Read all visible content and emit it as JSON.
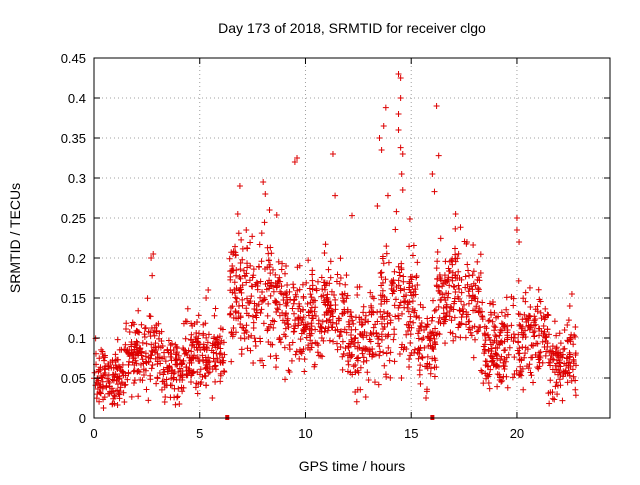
{
  "chart_data": {
    "type": "scatter",
    "title": "Day 173 of 2018, SRMTID for receiver clgo",
    "xlabel": "GPS time / hours",
    "ylabel": "SRMTID / TECUs",
    "xlim": [
      0,
      24.4
    ],
    "ylim": [
      0,
      0.45
    ],
    "x_ticks": [
      0,
      5,
      10,
      15,
      20
    ],
    "x_tick_labels": [
      "0",
      "5",
      "10",
      "15",
      "20"
    ],
    "y_ticks": [
      0,
      0.05,
      0.1,
      0.15,
      0.2,
      0.25,
      0.3,
      0.35,
      0.4,
      0.45
    ],
    "y_tick_labels": [
      "0",
      "0.05",
      "0.1",
      "0.15",
      "0.2",
      "0.25",
      "0.3",
      "0.35",
      "0.4",
      "0.45"
    ],
    "grid": true,
    "marker": "plus",
    "color": "#dd0000",
    "gap_markers_x": [
      6.3,
      16.0
    ],
    "series": [
      {
        "name": "SRMTID",
        "segments": [
          {
            "start": 0.0,
            "end": 1.5,
            "mean": 0.05,
            "spread": 0.035
          },
          {
            "start": 1.5,
            "end": 3.2,
            "mean": 0.08,
            "spread": 0.045
          },
          {
            "start": 3.2,
            "end": 4.2,
            "mean": 0.06,
            "spread": 0.035
          },
          {
            "start": 4.2,
            "end": 6.2,
            "mean": 0.08,
            "spread": 0.04
          },
          {
            "start": 6.4,
            "end": 9.0,
            "mean": 0.15,
            "spread": 0.065
          },
          {
            "start": 9.0,
            "end": 12.0,
            "mean": 0.13,
            "spread": 0.06
          },
          {
            "start": 12.0,
            "end": 13.5,
            "mean": 0.1,
            "spread": 0.05
          },
          {
            "start": 13.5,
            "end": 15.3,
            "mean": 0.14,
            "spread": 0.075
          },
          {
            "start": 15.3,
            "end": 16.2,
            "mean": 0.09,
            "spread": 0.045
          },
          {
            "start": 16.2,
            "end": 18.3,
            "mean": 0.15,
            "spread": 0.065
          },
          {
            "start": 18.3,
            "end": 20.2,
            "mean": 0.09,
            "spread": 0.05
          },
          {
            "start": 20.2,
            "end": 21.5,
            "mean": 0.1,
            "spread": 0.05
          },
          {
            "start": 21.5,
            "end": 22.8,
            "mean": 0.07,
            "spread": 0.04
          }
        ],
        "outliers": [
          {
            "x": 2.8,
            "y": 0.205
          },
          {
            "x": 2.7,
            "y": 0.2
          },
          {
            "x": 2.75,
            "y": 0.178
          },
          {
            "x": 5.4,
            "y": 0.16
          },
          {
            "x": 5.3,
            "y": 0.15
          },
          {
            "x": 6.9,
            "y": 0.29
          },
          {
            "x": 6.8,
            "y": 0.255
          },
          {
            "x": 7.2,
            "y": 0.235
          },
          {
            "x": 8.0,
            "y": 0.295
          },
          {
            "x": 8.1,
            "y": 0.28
          },
          {
            "x": 8.3,
            "y": 0.26
          },
          {
            "x": 9.6,
            "y": 0.325
          },
          {
            "x": 9.5,
            "y": 0.32
          },
          {
            "x": 11.3,
            "y": 0.33
          },
          {
            "x": 11.4,
            "y": 0.278
          },
          {
            "x": 12.2,
            "y": 0.253
          },
          {
            "x": 13.5,
            "y": 0.35
          },
          {
            "x": 13.7,
            "y": 0.365
          },
          {
            "x": 13.8,
            "y": 0.388
          },
          {
            "x": 13.6,
            "y": 0.335
          },
          {
            "x": 13.4,
            "y": 0.265
          },
          {
            "x": 13.9,
            "y": 0.278
          },
          {
            "x": 14.4,
            "y": 0.43
          },
          {
            "x": 14.5,
            "y": 0.425
          },
          {
            "x": 14.5,
            "y": 0.4
          },
          {
            "x": 14.4,
            "y": 0.38
          },
          {
            "x": 14.4,
            "y": 0.36
          },
          {
            "x": 14.5,
            "y": 0.338
          },
          {
            "x": 14.6,
            "y": 0.33
          },
          {
            "x": 14.55,
            "y": 0.305
          },
          {
            "x": 14.6,
            "y": 0.285
          },
          {
            "x": 14.3,
            "y": 0.258
          },
          {
            "x": 16.2,
            "y": 0.39
          },
          {
            "x": 16.3,
            "y": 0.328
          },
          {
            "x": 16.0,
            "y": 0.305
          },
          {
            "x": 16.1,
            "y": 0.283
          },
          {
            "x": 15.7,
            "y": 0.025
          },
          {
            "x": 17.1,
            "y": 0.255
          },
          {
            "x": 20.0,
            "y": 0.25
          },
          {
            "x": 20.0,
            "y": 0.235
          },
          {
            "x": 20.1,
            "y": 0.22
          },
          {
            "x": 22.6,
            "y": 0.155
          },
          {
            "x": 22.5,
            "y": 0.14
          }
        ]
      }
    ]
  }
}
